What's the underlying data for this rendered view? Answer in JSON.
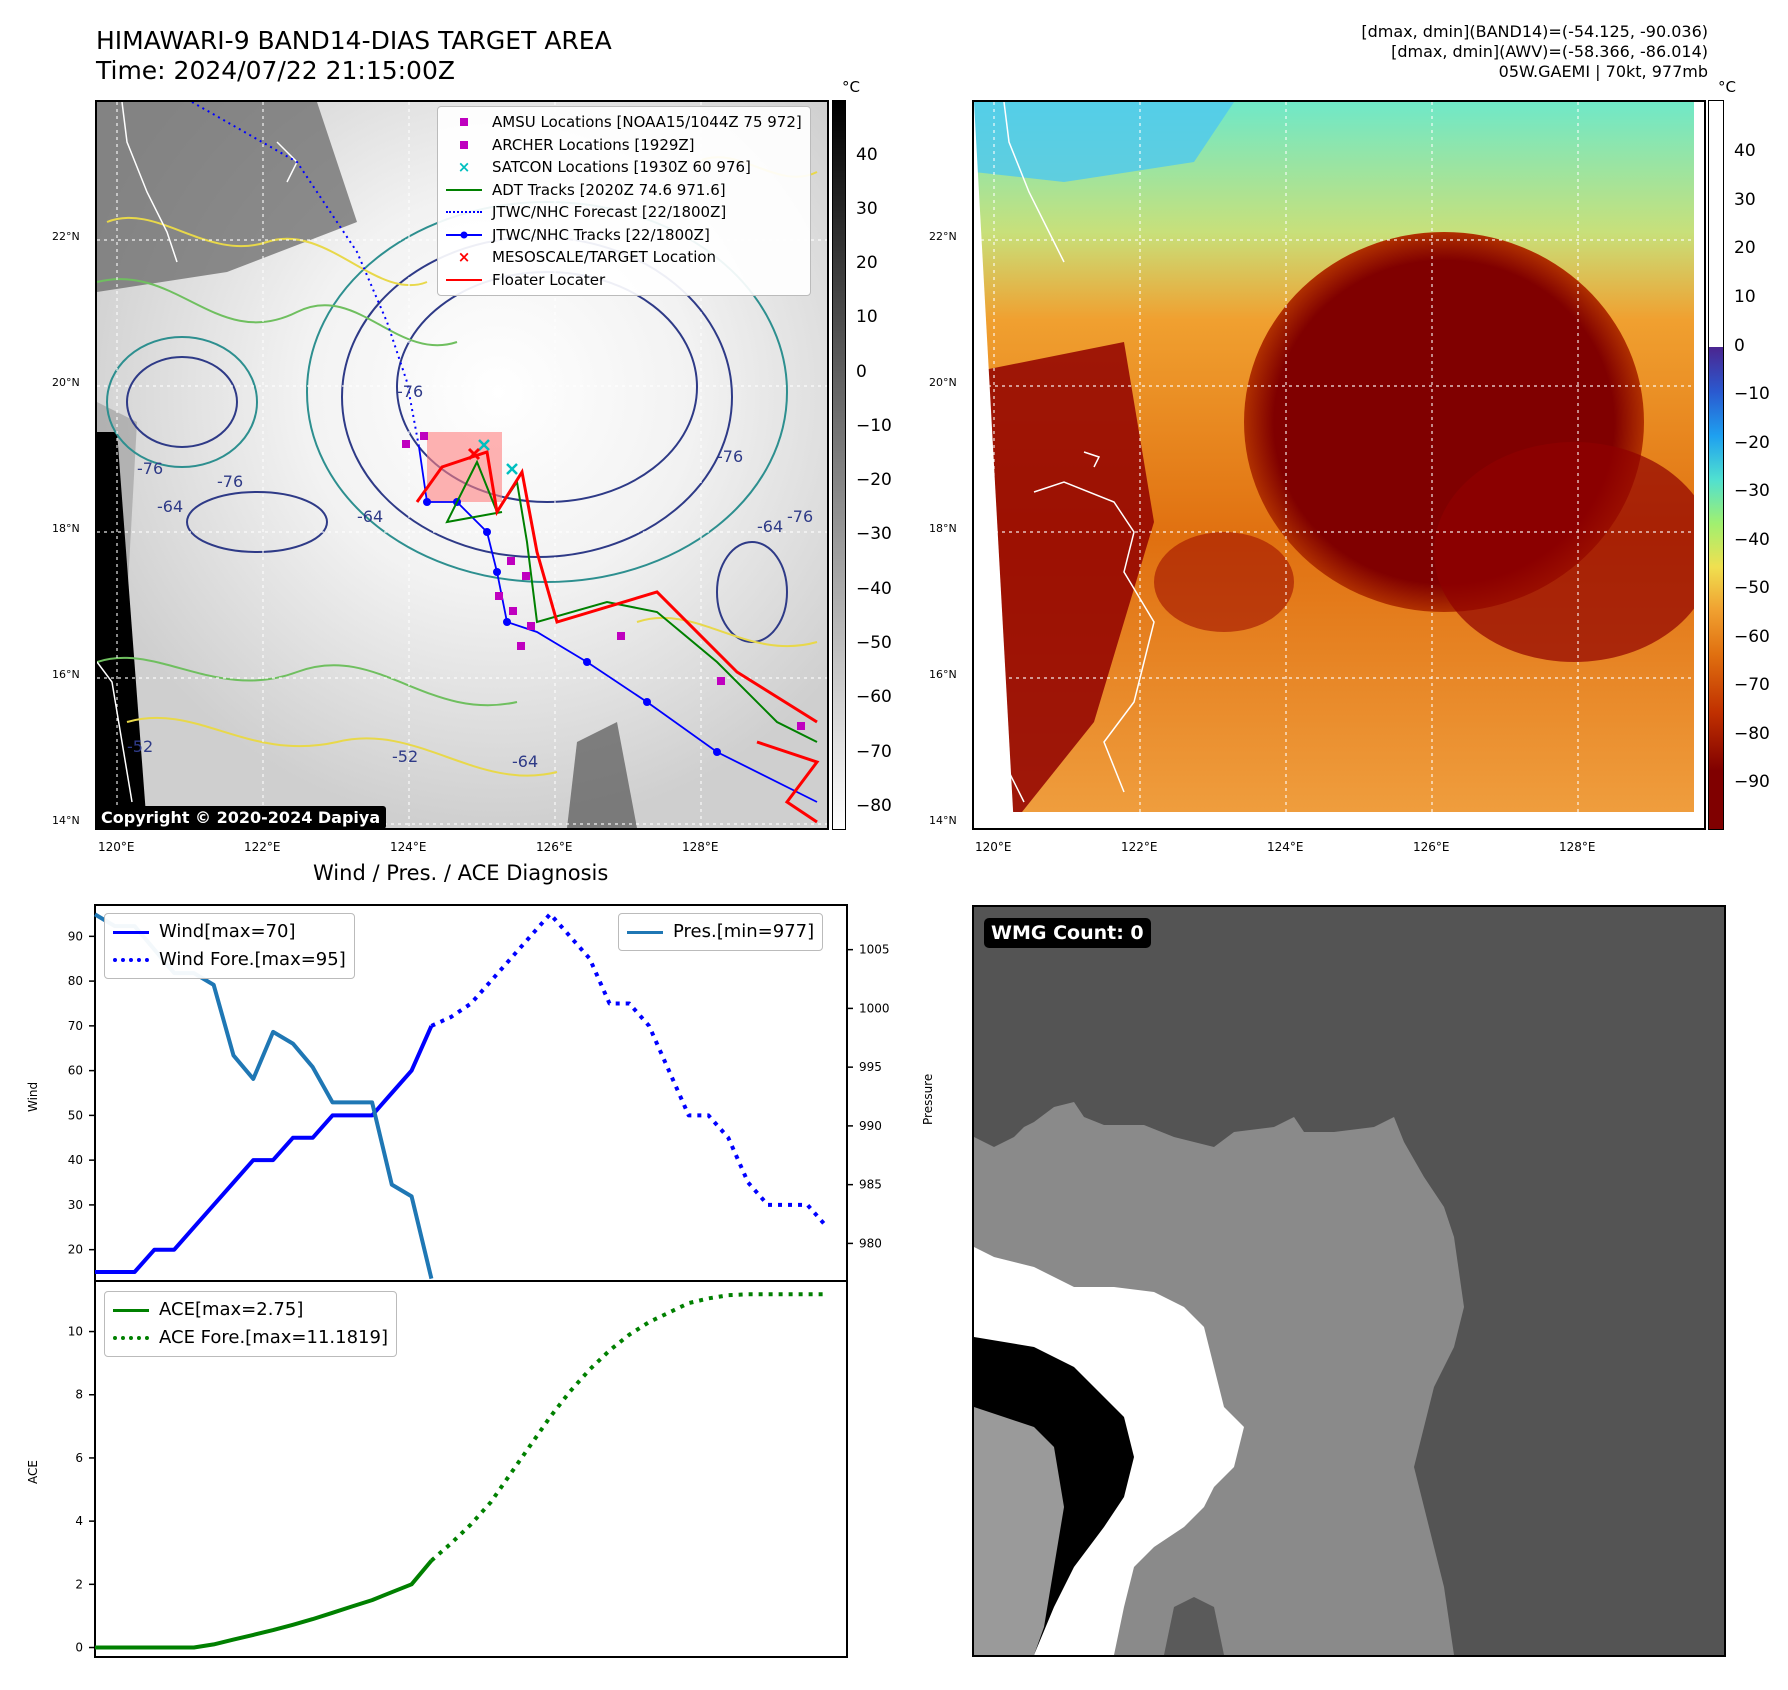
{
  "header": {
    "title_line1": "HIMAWARI-9 BAND14-DIAS TARGET AREA",
    "title_line2": "Time: 2024/07/22 21:15:00Z",
    "info_line1": "[dmax, dmin](BAND14)=(-54.125, -90.036)",
    "info_line2": "[dmax, dmin](AWV)=(-58.366, -86.014)",
    "info_line3": "05W.GAEMI | 70kt, 977mb"
  },
  "map_left": {
    "unit": "°C",
    "colorbar_ticks": [
      "40",
      "30",
      "20",
      "10",
      "0",
      "−10",
      "−20",
      "−30",
      "−40",
      "−50",
      "−60",
      "−70",
      "−80"
    ],
    "lat_labels": [
      "22°N",
      "20°N",
      "18°N",
      "16°N",
      "14°N"
    ],
    "lon_labels": [
      "120°E",
      "122°E",
      "124°E",
      "126°E",
      "128°E"
    ],
    "legend": [
      {
        "label": "AMSU Locations [NOAA15/1044Z 75 972]"
      },
      {
        "label": "ARCHER Locations [1929Z]"
      },
      {
        "label": "SATCON Locations [1930Z 60 976]"
      },
      {
        "label": "ADT Tracks [2020Z 74.6 971.6]"
      },
      {
        "label": "JTWC/NHC Forecast [22/1800Z]"
      },
      {
        "label": "JTWC/NHC Tracks [22/1800Z]"
      },
      {
        "label": "MESOSCALE/TARGET Location"
      },
      {
        "label": "Floater Locater"
      }
    ],
    "contour_labels": [
      "-76",
      "-64",
      "-64",
      "-76",
      "-52",
      "-52",
      "-64",
      "-64",
      "-76",
      "-76",
      "-76"
    ],
    "copyright": "Copyright © 2020-2024 Dapiya"
  },
  "map_right": {
    "unit": "°C",
    "colorbar_ticks": [
      "40",
      "30",
      "20",
      "10",
      "0",
      "−10",
      "−20",
      "−30",
      "−40",
      "−50",
      "−60",
      "−70",
      "−80",
      "−90"
    ],
    "lat_labels": [
      "22°N",
      "20°N",
      "18°N",
      "16°N",
      "14°N"
    ],
    "lon_labels": [
      "120°E",
      "122°E",
      "124°E",
      "126°E",
      "128°E"
    ]
  },
  "wmg": {
    "label": "WMG Count: 0"
  },
  "diagnosis": {
    "title": "Wind / Pres. / ACE Diagnosis",
    "wind_ylabel": "Wind",
    "pres_ylabel": "Pressure",
    "ace_ylabel": "ACE",
    "legend_wind": "Wind[max=70]",
    "legend_wind_fore": "Wind Fore.[max=95]",
    "legend_pres": "Pres.[min=977]",
    "legend_ace": "ACE[max=2.75]",
    "legend_ace_fore": "ACE Fore.[max=11.1819]"
  },
  "chart_data": [
    {
      "type": "line",
      "title": "Wind / Pres. / ACE Diagnosis",
      "ylabel": "Wind",
      "ylim": [
        13,
        97
      ],
      "yticks": [
        20,
        30,
        40,
        50,
        60,
        70,
        80,
        90
      ],
      "xlim": [
        0,
        38
      ],
      "series": [
        {
          "name": "Wind[max=70]",
          "style": "solid",
          "color": "#0000ff",
          "x": [
            0,
            1,
            2,
            3,
            4,
            5,
            6,
            7,
            8,
            9,
            10,
            11,
            12,
            13,
            14,
            15,
            16,
            17
          ],
          "values": [
            15,
            15,
            15,
            20,
            20,
            25,
            30,
            35,
            40,
            40,
            45,
            45,
            50,
            50,
            50,
            55,
            60,
            70
          ]
        },
        {
          "name": "Wind Fore.[max=95]",
          "style": "dotted",
          "color": "#0000ff",
          "x": [
            17,
            18,
            19,
            20,
            21,
            22,
            23,
            24,
            25,
            26,
            27,
            28,
            29,
            30,
            31,
            32,
            33,
            34,
            35,
            36,
            37
          ],
          "values": [
            70,
            72,
            75,
            80,
            85,
            90,
            95,
            90,
            85,
            75,
            75,
            70,
            60,
            50,
            50,
            45,
            35,
            30,
            30,
            30,
            25
          ]
        }
      ]
    },
    {
      "type": "line",
      "ylabel": "Pressure",
      "ylim": [
        976.8,
        1008.8
      ],
      "yticks": [
        980,
        985,
        990,
        995,
        1000,
        1005
      ],
      "series": [
        {
          "name": "Pres.[min=977]",
          "color": "#1f77b4",
          "x": [
            0,
            1,
            2,
            3,
            4,
            5,
            6,
            7,
            8,
            9,
            10,
            11,
            12,
            13,
            14,
            15,
            16,
            17
          ],
          "values": [
            1008,
            1007,
            1007,
            1005,
            1003,
            1003,
            1002,
            996,
            994,
            998,
            997,
            995,
            992,
            992,
            992,
            985,
            984,
            977
          ]
        }
      ]
    },
    {
      "type": "line",
      "ylabel": "ACE",
      "ylim": [
        -0.3,
        11.6
      ],
      "yticks": [
        0,
        2,
        4,
        6,
        8,
        10
      ],
      "series": [
        {
          "name": "ACE[max=2.75]",
          "style": "solid",
          "color": "#008000",
          "x": [
            0,
            1,
            2,
            3,
            4,
            5,
            6,
            7,
            8,
            9,
            10,
            11,
            12,
            13,
            14,
            15,
            16,
            17
          ],
          "values": [
            0,
            0,
            0,
            0,
            0,
            0,
            0.1,
            0.25,
            0.4,
            0.55,
            0.72,
            0.9,
            1.1,
            1.3,
            1.5,
            1.75,
            2.0,
            2.75
          ]
        },
        {
          "name": "ACE Fore.[max=11.1819]",
          "style": "dotted",
          "color": "#008000",
          "x": [
            17,
            18,
            19,
            20,
            21,
            22,
            23,
            24,
            25,
            26,
            27,
            28,
            29,
            30,
            31,
            32,
            33,
            34,
            35,
            36,
            37
          ],
          "values": [
            2.75,
            3.3,
            3.9,
            4.6,
            5.5,
            6.4,
            7.3,
            8.1,
            8.8,
            9.4,
            9.9,
            10.3,
            10.6,
            10.9,
            11.05,
            11.15,
            11.18,
            11.18,
            11.18,
            11.18,
            11.18
          ]
        }
      ]
    }
  ]
}
